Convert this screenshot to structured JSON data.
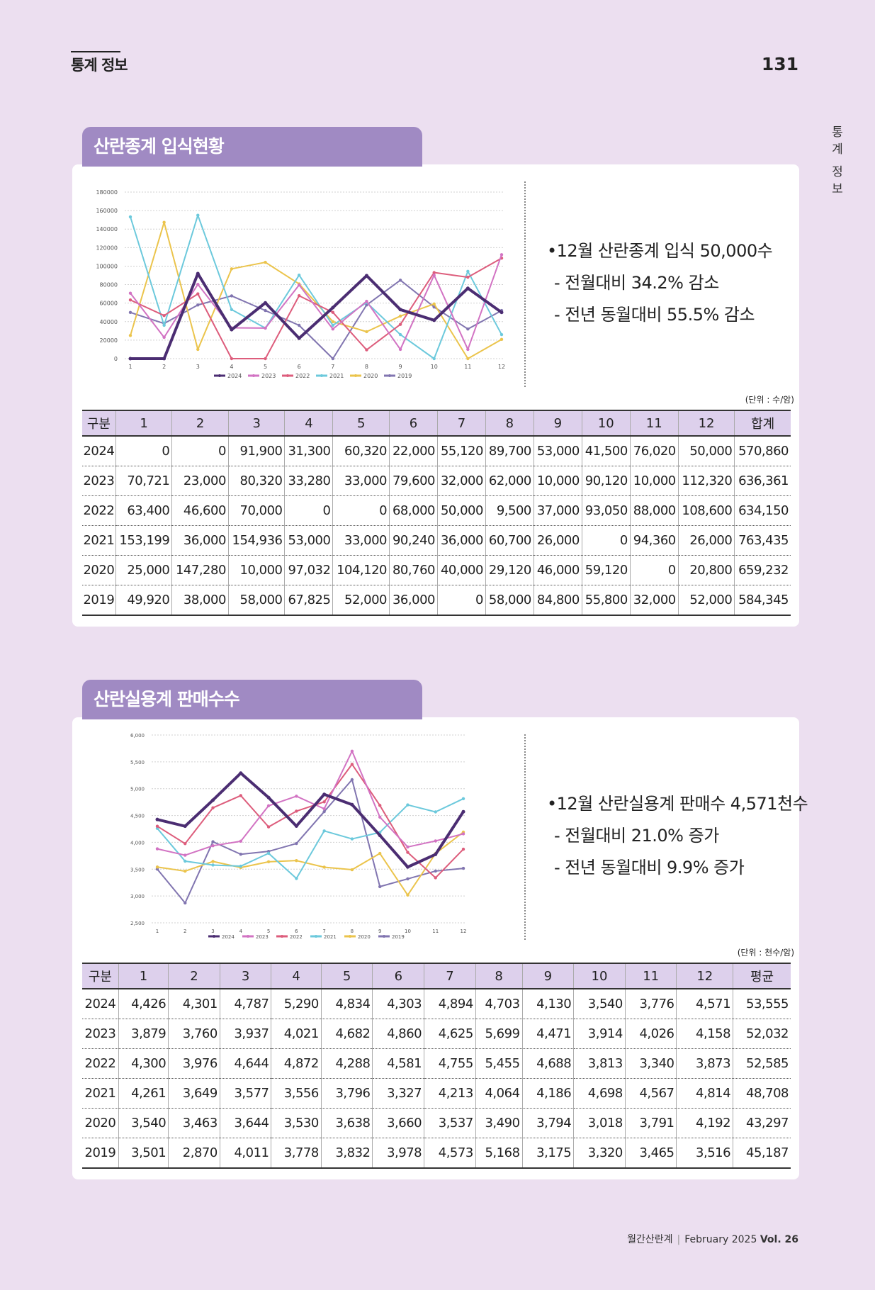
{
  "header": {
    "section": "통계 정보",
    "page": "131"
  },
  "side_tab": [
    "통",
    "계",
    "정",
    "보"
  ],
  "footer": {
    "magazine": "월간산란계",
    "month": "February 2025",
    "vol": "Vol. 26"
  },
  "sections": [
    {
      "title": "산란종계 입식현황",
      "summary": [
        "•12월 산란종계 입식 50,000수",
        "- 전월대비 34.2% 감소",
        "- 전년 동월대비 55.5% 감소"
      ],
      "unit": "(단위 : 수/암)",
      "table": {
        "headers": [
          "구분",
          "1",
          "2",
          "3",
          "4",
          "5",
          "6",
          "7",
          "8",
          "9",
          "10",
          "11",
          "12",
          "합계"
        ],
        "rows": [
          [
            "2024",
            "0",
            "0",
            "91,900",
            "31,300",
            "60,320",
            "22,000",
            "55,120",
            "89,700",
            "53,000",
            "41,500",
            "76,020",
            "50,000",
            "570,860"
          ],
          [
            "2023",
            "70,721",
            "23,000",
            "80,320",
            "33,280",
            "33,000",
            "79,600",
            "32,000",
            "62,000",
            "10,000",
            "90,120",
            "10,000",
            "112,320",
            "636,361"
          ],
          [
            "2022",
            "63,400",
            "46,600",
            "70,000",
            "0",
            "0",
            "68,000",
            "50,000",
            "9,500",
            "37,000",
            "93,050",
            "88,000",
            "108,600",
            "634,150"
          ],
          [
            "2021",
            "153,199",
            "36,000",
            "154,936",
            "53,000",
            "33,000",
            "90,240",
            "36,000",
            "60,700",
            "26,000",
            "0",
            "94,360",
            "26,000",
            "763,435"
          ],
          [
            "2020",
            "25,000",
            "147,280",
            "10,000",
            "97,032",
            "104,120",
            "80,760",
            "40,000",
            "29,120",
            "46,000",
            "59,120",
            "0",
            "20,800",
            "659,232"
          ],
          [
            "2019",
            "49,920",
            "38,000",
            "58,000",
            "67,825",
            "52,000",
            "36,000",
            "0",
            "58,000",
            "84,800",
            "55,800",
            "32,000",
            "52,000",
            "584,345"
          ]
        ]
      }
    },
    {
      "title": "산란실용계 판매수수",
      "summary": [
        "•12월 산란실용계 판매수 4,571천수",
        "- 전월대비 21.0% 증가",
        "- 전년 동월대비 9.9% 증가"
      ],
      "unit": "(단위 : 천수/암)",
      "table": {
        "headers": [
          "구분",
          "1",
          "2",
          "3",
          "4",
          "5",
          "6",
          "7",
          "8",
          "9",
          "10",
          "11",
          "12",
          "평균"
        ],
        "rows": [
          [
            "2024",
            "4,426",
            "4,301",
            "4,787",
            "5,290",
            "4,834",
            "4,303",
            "4,894",
            "4,703",
            "4,130",
            "3,540",
            "3,776",
            "4,571",
            "53,555"
          ],
          [
            "2023",
            "3,879",
            "3,760",
            "3,937",
            "4,021",
            "4,682",
            "4,860",
            "4,625",
            "5,699",
            "4,471",
            "3,914",
            "4,026",
            "4,158",
            "52,032"
          ],
          [
            "2022",
            "4,300",
            "3,976",
            "4,644",
            "4,872",
            "4,288",
            "4,581",
            "4,755",
            "5,455",
            "4,688",
            "3,813",
            "3,340",
            "3,873",
            "52,585"
          ],
          [
            "2021",
            "4,261",
            "3,649",
            "3,577",
            "3,556",
            "3,796",
            "3,327",
            "4,213",
            "4,064",
            "4,186",
            "4,698",
            "4,567",
            "4,814",
            "48,708"
          ],
          [
            "2020",
            "3,540",
            "3,463",
            "3,644",
            "3,530",
            "3,638",
            "3,660",
            "3,537",
            "3,490",
            "3,794",
            "3,018",
            "3,791",
            "4,192",
            "43,297"
          ],
          [
            "2019",
            "3,501",
            "2,870",
            "4,011",
            "3,778",
            "3,832",
            "3,978",
            "4,573",
            "5,168",
            "3,175",
            "3,320",
            "3,465",
            "3,516",
            "45,187"
          ]
        ]
      }
    }
  ],
  "chart_data": [
    {
      "type": "line",
      "x": [
        1,
        2,
        3,
        4,
        5,
        6,
        7,
        8,
        9,
        10,
        11,
        12
      ],
      "yticks": [
        "0",
        "20000",
        "40000",
        "60000",
        "80000",
        "100000",
        "120000",
        "140000",
        "160000",
        "180000"
      ],
      "ylim": [
        0,
        180000
      ],
      "grid": true,
      "legend_position": "bottom",
      "series": [
        {
          "name": "2024",
          "color": "#4b2d72",
          "values": [
            0,
            0,
            91900,
            31300,
            60320,
            22000,
            55120,
            89700,
            53000,
            41500,
            76020,
            50000
          ]
        },
        {
          "name": "2023",
          "color": "#d273c3",
          "values": [
            70721,
            23000,
            80320,
            33280,
            33000,
            79600,
            32000,
            62000,
            10000,
            90120,
            10000,
            112320
          ]
        },
        {
          "name": "2022",
          "color": "#dd5d7c",
          "values": [
            63400,
            46600,
            70000,
            0,
            0,
            68000,
            50000,
            9500,
            37000,
            93050,
            88000,
            108600
          ]
        },
        {
          "name": "2021",
          "color": "#6cc9dc",
          "values": [
            153199,
            36000,
            154936,
            53000,
            33000,
            90240,
            36000,
            60700,
            26000,
            0,
            94360,
            26000
          ]
        },
        {
          "name": "2020",
          "color": "#ebc44c",
          "values": [
            25000,
            147280,
            10000,
            97032,
            104120,
            80760,
            40000,
            29120,
            46000,
            59120,
            0,
            20800
          ]
        },
        {
          "name": "2019",
          "color": "#8175b0",
          "values": [
            49920,
            38000,
            58000,
            67825,
            52000,
            36000,
            0,
            58000,
            84800,
            55800,
            32000,
            52000
          ]
        }
      ]
    },
    {
      "type": "line",
      "x": [
        1,
        2,
        3,
        4,
        5,
        6,
        7,
        8,
        9,
        10,
        11,
        12
      ],
      "yticks": [
        "2,500",
        "3,000",
        "3,500",
        "4,000",
        "4,500",
        "5,000",
        "5,500",
        "6,000"
      ],
      "ylim": [
        2500,
        6000
      ],
      "grid": true,
      "legend_position": "bottom",
      "series": [
        {
          "name": "2024",
          "color": "#4b2d72",
          "values": [
            4426,
            4301,
            4787,
            5290,
            4834,
            4303,
            4894,
            4703,
            4130,
            3540,
            3776,
            4571
          ]
        },
        {
          "name": "2023",
          "color": "#d273c3",
          "values": [
            3879,
            3760,
            3937,
            4021,
            4682,
            4860,
            4625,
            5699,
            4471,
            3914,
            4026,
            4158
          ]
        },
        {
          "name": "2022",
          "color": "#dd5d7c",
          "values": [
            4300,
            3976,
            4644,
            4872,
            4288,
            4581,
            4755,
            5455,
            4688,
            3813,
            3340,
            3873
          ]
        },
        {
          "name": "2021",
          "color": "#6cc9dc",
          "values": [
            4261,
            3649,
            3577,
            3556,
            3796,
            3327,
            4213,
            4064,
            4186,
            4698,
            4567,
            4814
          ]
        },
        {
          "name": "2020",
          "color": "#ebc44c",
          "values": [
            3540,
            3463,
            3644,
            3530,
            3638,
            3660,
            3537,
            3490,
            3794,
            3018,
            3791,
            4192
          ]
        },
        {
          "name": "2019",
          "color": "#8175b0",
          "values": [
            3501,
            2870,
            4011,
            3778,
            3832,
            3978,
            4573,
            5168,
            3175,
            3320,
            3465,
            3516
          ]
        }
      ]
    }
  ]
}
